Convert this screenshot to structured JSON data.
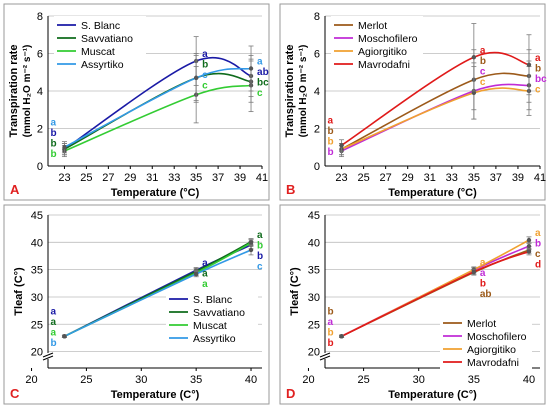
{
  "panels": [
    {
      "panel_letter": "A",
      "xlabel": "Temperature (°C)",
      "ylabel_line1": "Transpiration rate",
      "ylabel_line2": "(mmol H₂O m⁻² s⁻¹)",
      "legend_position": "top-left",
      "y_axis_break": false,
      "series_colors": [
        "#1a1aa6",
        "#0f6b1c",
        "#33cc33",
        "#3399e6"
      ]
    },
    {
      "panel_letter": "B",
      "xlabel": "Temperature (°C)",
      "ylabel_line1": "Transpiration rate",
      "ylabel_line2": "(mmol H₂O m⁻² s⁻¹)",
      "legend_position": "top-left",
      "y_axis_break": false,
      "series_colors": [
        "#9c5a1a",
        "#c02bd6",
        "#f0a030",
        "#e01a1a"
      ]
    },
    {
      "panel_letter": "C",
      "xlabel": "Temperature (C°)",
      "ylabel_line1": "Tleaf (C°)",
      "ylabel_line2": "",
      "legend_position": "bottom-right",
      "y_axis_break": true,
      "series_colors": [
        "#1a1aa6",
        "#0f6b1c",
        "#33cc33",
        "#3399e6"
      ]
    },
    {
      "panel_letter": "D",
      "xlabel": "Temperature (C°)",
      "ylabel_line1": "Tleaf (C°)",
      "ylabel_line2": "",
      "legend_position": "bottom-right",
      "y_axis_break": true,
      "series_colors": [
        "#9c5a1a",
        "#c02bd6",
        "#f0a030",
        "#e01a1a"
      ]
    }
  ],
  "chart_data": [
    {
      "type": "line",
      "x": [
        23,
        35,
        40
      ],
      "xlim": [
        21.5,
        41
      ],
      "xticks": [
        23,
        25,
        27,
        29,
        31,
        33,
        35,
        37,
        39,
        41
      ],
      "ylim": [
        0,
        8
      ],
      "yticks": [
        0,
        2,
        4,
        6,
        8
      ],
      "grid": "horizontal",
      "series": [
        {
          "name": "S. Blanc",
          "values": [
            0.9,
            5.6,
            4.8
          ],
          "err": [
            0.3,
            1.3,
            1.1
          ],
          "letters": [
            "b",
            "a",
            "ab"
          ]
        },
        {
          "name": "Savvatiano",
          "values": [
            0.9,
            4.7,
            4.5
          ],
          "err": [
            0.3,
            1.3,
            1.1
          ],
          "letters": [
            "b",
            "b",
            "bc"
          ]
        },
        {
          "name": "Muscat",
          "values": [
            0.8,
            3.8,
            4.3
          ],
          "err": [
            0.3,
            1.5,
            1.4
          ],
          "letters": [
            "b",
            "c",
            "c"
          ]
        },
        {
          "name": "Assyrtiko",
          "values": [
            1.0,
            4.7,
            5.2
          ],
          "err": [
            0.3,
            1.2,
            1.2
          ],
          "letters": [
            "a",
            "c",
            "a"
          ]
        }
      ]
    },
    {
      "type": "line",
      "x": [
        23,
        35,
        40
      ],
      "xlim": [
        21.5,
        41
      ],
      "xticks": [
        23,
        25,
        27,
        29,
        31,
        33,
        35,
        37,
        39,
        41
      ],
      "ylim": [
        0,
        8
      ],
      "yticks": [
        0,
        2,
        4,
        6,
        8
      ],
      "grid": "horizontal",
      "series": [
        {
          "name": "Merlot",
          "values": [
            0.9,
            4.6,
            4.8
          ],
          "err": [
            0.3,
            1.6,
            1.4
          ],
          "letters": [
            "b",
            "b",
            "b"
          ]
        },
        {
          "name": "Moschofilero",
          "values": [
            0.8,
            4.0,
            4.3
          ],
          "err": [
            0.3,
            1.5,
            1.3
          ],
          "letters": [
            "b",
            "c",
            "bc"
          ]
        },
        {
          "name": "Agiorgitiko",
          "values": [
            0.9,
            3.9,
            4.0
          ],
          "err": [
            0.3,
            1.4,
            1.3
          ],
          "letters": [
            "b",
            "c",
            "c"
          ]
        },
        {
          "name": "Mavrodafni",
          "values": [
            1.1,
            5.8,
            5.4
          ],
          "err": [
            0.3,
            1.8,
            1.6
          ],
          "letters": [
            "a",
            "a",
            "a"
          ]
        }
      ]
    },
    {
      "type": "line",
      "x": [
        23,
        35,
        40
      ],
      "xlim": [
        21.5,
        41
      ],
      "xticks": [
        20,
        25,
        30,
        35,
        40
      ],
      "ylim": [
        17,
        45
      ],
      "yticks": [
        20,
        25,
        30,
        35,
        40,
        45
      ],
      "grid": "horizontal",
      "series": [
        {
          "name": "S. Blanc",
          "values": [
            22.8,
            34.9,
            39.5
          ],
          "err": [
            0.2,
            0.5,
            0.7
          ],
          "letters": [
            "a",
            "a",
            "b"
          ]
        },
        {
          "name": "Savvatiano",
          "values": [
            22.8,
            34.7,
            40.1
          ],
          "err": [
            0.2,
            0.5,
            0.6
          ],
          "letters": [
            "a",
            "a",
            "a"
          ]
        },
        {
          "name": "Muscat",
          "values": [
            22.8,
            34.4,
            39.9
          ],
          "err": [
            0.2,
            0.5,
            0.6
          ],
          "letters": [
            "a",
            "a",
            "b"
          ]
        },
        {
          "name": "Assyrtiko",
          "values": [
            22.8,
            34.2,
            38.6
          ],
          "err": [
            0.2,
            0.5,
            0.9
          ],
          "letters": [
            "b",
            "b",
            "c"
          ]
        }
      ]
    },
    {
      "type": "line",
      "x": [
        23,
        35,
        40
      ],
      "xlim": [
        21.5,
        41
      ],
      "xticks": [
        20,
        25,
        30,
        35,
        40
      ],
      "ylim": [
        17,
        45
      ],
      "yticks": [
        20,
        25,
        30,
        35,
        40,
        45
      ],
      "grid": "horizontal",
      "series": [
        {
          "name": "Merlot",
          "values": [
            22.8,
            34.5,
            38.6
          ],
          "err": [
            0.2,
            0.5,
            0.6
          ],
          "letters": [
            "b",
            "ab",
            "c"
          ]
        },
        {
          "name": "Moschofilero",
          "values": [
            22.8,
            34.9,
            39.3
          ],
          "err": [
            0.2,
            0.5,
            0.6
          ],
          "letters": [
            "a",
            "a",
            "b"
          ]
        },
        {
          "name": "Agiorgitiko",
          "values": [
            22.8,
            35.0,
            40.4
          ],
          "err": [
            0.2,
            0.5,
            0.6
          ],
          "letters": [
            "b",
            "a",
            "a"
          ]
        },
        {
          "name": "Mavrodafni",
          "values": [
            22.8,
            34.6,
            38.3
          ],
          "err": [
            0.2,
            0.5,
            0.6
          ],
          "letters": [
            "b",
            "b",
            "d"
          ]
        }
      ]
    }
  ]
}
